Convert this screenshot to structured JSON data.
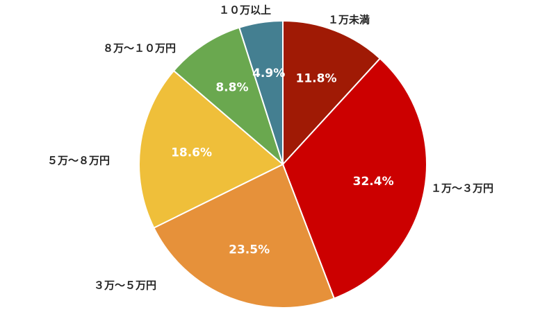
{
  "chart_data": {
    "type": "pie",
    "start_angle_deg": 0,
    "direction": "clockwise",
    "slices": [
      {
        "label": "１万未満",
        "value": 11.8,
        "value_label": "11.8%",
        "color": "#a01a05"
      },
      {
        "label": "１万～３万円",
        "value": 32.4,
        "value_label": "32.4%",
        "color": "#cc0000"
      },
      {
        "label": "３万～５万円",
        "value": 23.5,
        "value_label": "23.5%",
        "color": "#e6913a"
      },
      {
        "label": "５万～８万円",
        "value": 18.6,
        "value_label": "18.6%",
        "color": "#efbf3a"
      },
      {
        "label": "８万～１０万円",
        "value": 8.8,
        "value_label": "8.8%",
        "color": "#6aa84f"
      },
      {
        "label": "１０万以上",
        "value": 4.9,
        "value_label": "4.9%",
        "color": "#447f91"
      }
    ],
    "legend": "none",
    "border_color": "#ffffff"
  }
}
